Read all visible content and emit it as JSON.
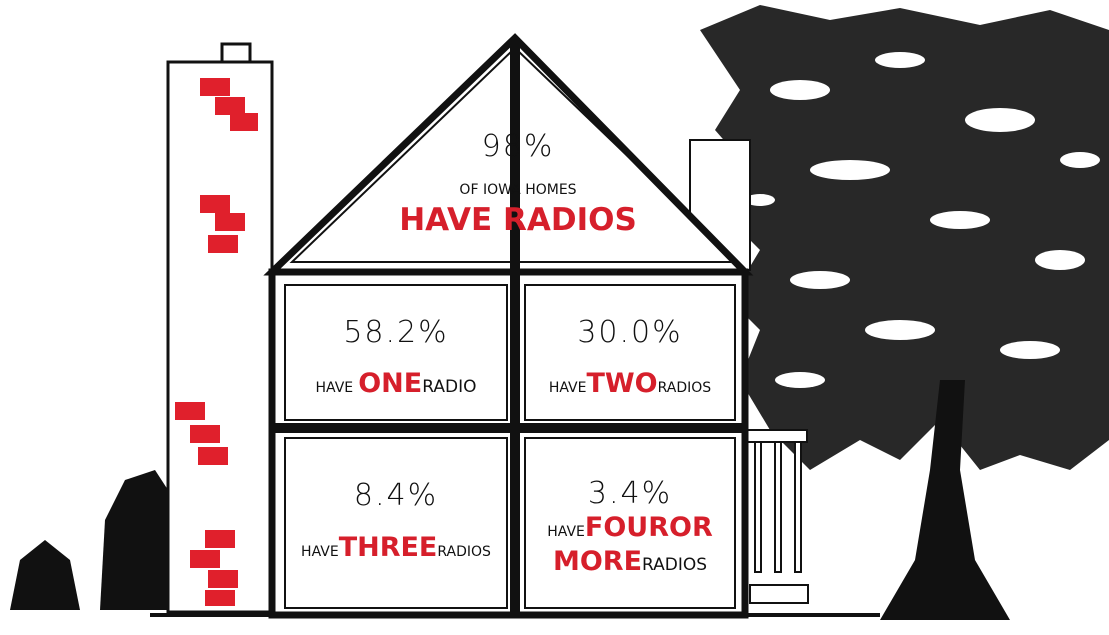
{
  "attic": {
    "percent": "98%",
    "line1": "OF IOWA HOMES",
    "line2": "HAVE RADIOS"
  },
  "rooms": [
    {
      "percent": "58.2%",
      "have": "HAVE",
      "count": "ONE",
      "rest": "RADIO"
    },
    {
      "percent": "30.0%",
      "have": "HAVE",
      "count": "TWO",
      "rest": "RADIOS"
    },
    {
      "percent": "8.4%",
      "have": "HAVE",
      "count": "THREE",
      "rest": "RADIOS"
    },
    {
      "percent": "3.4%",
      "have": "HAVE",
      "count": "FOUR",
      "or": "OR",
      "more": "MORE",
      "rest": "RADIOS"
    }
  ]
}
